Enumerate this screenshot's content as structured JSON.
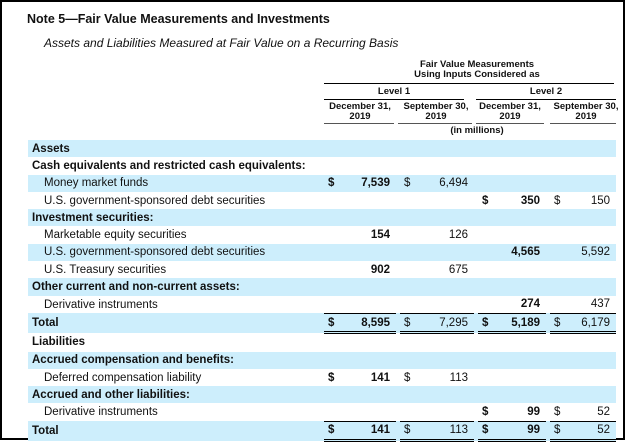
{
  "title": "Note 5—Fair Value Measurements and Investments",
  "subtitle": "Assets and Liabilities Measured at Fair Value on a Recurring Basis",
  "header": {
    "group_title_line1": "Fair Value Measurements",
    "group_title_line2": "Using Inputs Considered as",
    "level1": "Level 1",
    "level2": "Level 2",
    "col1_line1": "December 31,",
    "col1_line2": "2019",
    "col2_line1": "September 30,",
    "col2_line2": "2019",
    "col3_line1": "December 31,",
    "col3_line2": "2019",
    "col4_line1": "September 30,",
    "col4_line2": "2019",
    "units": "(in millions)"
  },
  "rows": [
    {
      "label": "Assets",
      "type": "section",
      "cells": [
        [
          "",
          ""
        ],
        [
          "",
          ""
        ],
        [
          "",
          ""
        ],
        [
          "",
          ""
        ]
      ]
    },
    {
      "label": "Cash equivalents and restricted cash equivalents:",
      "type": "section",
      "cells": [
        [
          "",
          ""
        ],
        [
          "",
          ""
        ],
        [
          "",
          ""
        ],
        [
          "",
          ""
        ]
      ]
    },
    {
      "label": "Money market funds",
      "type": "item",
      "cells": [
        [
          "$",
          "7,539"
        ],
        [
          "$",
          "6,494"
        ],
        [
          "",
          ""
        ],
        [
          "",
          ""
        ]
      ]
    },
    {
      "label": "U.S. government-sponsored debt securities",
      "type": "item",
      "cells": [
        [
          "",
          ""
        ],
        [
          "",
          ""
        ],
        [
          "$",
          "350"
        ],
        [
          "$",
          "150"
        ]
      ]
    },
    {
      "label": "Investment securities:",
      "type": "section",
      "cells": [
        [
          "",
          ""
        ],
        [
          "",
          ""
        ],
        [
          "",
          ""
        ],
        [
          "",
          ""
        ]
      ]
    },
    {
      "label": "Marketable equity securities",
      "type": "item",
      "cells": [
        [
          "",
          "154"
        ],
        [
          "",
          "126"
        ],
        [
          "",
          ""
        ],
        [
          "",
          ""
        ]
      ]
    },
    {
      "label": "U.S. government-sponsored debt securities",
      "type": "item",
      "cells": [
        [
          "",
          ""
        ],
        [
          "",
          ""
        ],
        [
          "",
          "4,565"
        ],
        [
          "",
          "5,592"
        ]
      ]
    },
    {
      "label": "U.S. Treasury securities",
      "type": "item",
      "cells": [
        [
          "",
          "902"
        ],
        [
          "",
          "675"
        ],
        [
          "",
          ""
        ],
        [
          "",
          ""
        ]
      ]
    },
    {
      "label": "Other current and non-current assets:",
      "type": "section",
      "cells": [
        [
          "",
          ""
        ],
        [
          "",
          ""
        ],
        [
          "",
          ""
        ],
        [
          "",
          ""
        ]
      ]
    },
    {
      "label": "Derivative instruments",
      "type": "item",
      "cells": [
        [
          "",
          ""
        ],
        [
          "",
          ""
        ],
        [
          "",
          "274"
        ],
        [
          "",
          "437"
        ]
      ]
    },
    {
      "label": "Total",
      "type": "total",
      "cells": [
        [
          "$",
          "8,595"
        ],
        [
          "$",
          "7,295"
        ],
        [
          "$",
          "5,189"
        ],
        [
          "$",
          "6,179"
        ]
      ]
    },
    {
      "label": "Liabilities",
      "type": "section",
      "cells": [
        [
          "",
          ""
        ],
        [
          "",
          ""
        ],
        [
          "",
          ""
        ],
        [
          "",
          ""
        ]
      ]
    },
    {
      "label": "Accrued compensation and benefits:",
      "type": "section",
      "cells": [
        [
          "",
          ""
        ],
        [
          "",
          ""
        ],
        [
          "",
          ""
        ],
        [
          "",
          ""
        ]
      ]
    },
    {
      "label": "Deferred compensation liability",
      "type": "item",
      "cells": [
        [
          "$",
          "141"
        ],
        [
          "$",
          "113"
        ],
        [
          "",
          ""
        ],
        [
          "",
          ""
        ]
      ]
    },
    {
      "label": "Accrued and other liabilities:",
      "type": "section",
      "cells": [
        [
          "",
          ""
        ],
        [
          "",
          ""
        ],
        [
          "",
          ""
        ],
        [
          "",
          ""
        ]
      ]
    },
    {
      "label": "Derivative instruments",
      "type": "item",
      "cells": [
        [
          "",
          ""
        ],
        [
          "",
          ""
        ],
        [
          "$",
          "99"
        ],
        [
          "$",
          "52"
        ]
      ]
    },
    {
      "label": "Total",
      "type": "total",
      "cells": [
        [
          "$",
          "141"
        ],
        [
          "$",
          "113"
        ],
        [
          "$",
          "99"
        ],
        [
          "$",
          "52"
        ]
      ]
    }
  ],
  "colors": {
    "stripe": "#cdeefc",
    "border": "#000000"
  }
}
